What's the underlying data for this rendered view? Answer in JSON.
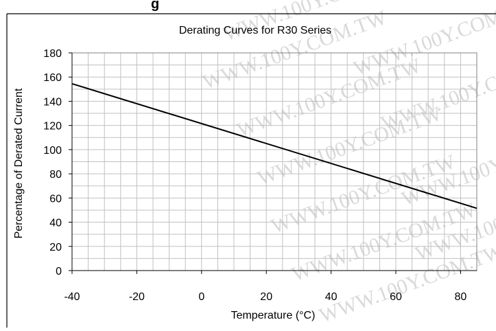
{
  "chart_data": {
    "type": "line",
    "title": "Derating Curves for R30 Series",
    "xlabel": "Temperature (°C)",
    "ylabel": "Percentage of Derated Current",
    "xlim": [
      -40,
      85
    ],
    "ylim": [
      0,
      180
    ],
    "x_ticks": [
      -40,
      -20,
      0,
      20,
      40,
      60,
      80
    ],
    "y_ticks": [
      0,
      20,
      40,
      60,
      80,
      100,
      120,
      140,
      160,
      180
    ],
    "grid": true,
    "legend": "none",
    "series": [
      {
        "x": [
          -40,
          85
        ],
        "y": [
          154.5,
          51.5
        ],
        "color": "#000000"
      }
    ],
    "colors": {
      "line": "#000000",
      "grid": "#c0c0c0",
      "frame": "#000000"
    },
    "watermark": "WWW.100Y.COM.TW",
    "top_text_fragment": "g"
  }
}
